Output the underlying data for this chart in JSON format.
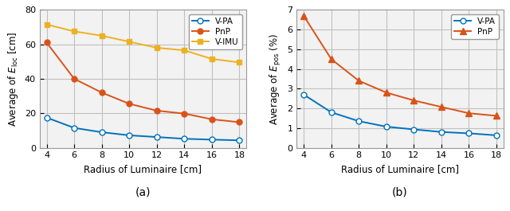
{
  "x": [
    4,
    6,
    8,
    10,
    12,
    14,
    16,
    18
  ],
  "left": {
    "vpa": [
      17.5,
      11.5,
      9.0,
      7.2,
      6.2,
      5.2,
      4.7,
      4.3
    ],
    "pnp": [
      61.0,
      40.0,
      32.0,
      25.5,
      21.5,
      19.8,
      16.5,
      14.8
    ],
    "vimu": [
      71.5,
      67.5,
      65.0,
      61.5,
      58.0,
      56.5,
      51.5,
      49.5
    ],
    "ylabel": "Average of $E_{\\mathrm{loc}}$ [cm]",
    "ylim": [
      0,
      80
    ],
    "yticks": [
      0,
      20,
      40,
      60,
      80
    ],
    "label": "(a)"
  },
  "right": {
    "vpa": [
      2.7,
      1.8,
      1.35,
      1.07,
      0.93,
      0.8,
      0.73,
      0.63
    ],
    "pnp": [
      6.7,
      4.5,
      3.4,
      2.8,
      2.4,
      2.07,
      1.75,
      1.62
    ],
    "ylabel": "Average of $E_{\\mathrm{pos}}$ (%)",
    "ylim": [
      0,
      7
    ],
    "yticks": [
      0,
      1,
      2,
      3,
      4,
      5,
      6,
      7
    ],
    "label": "(b)"
  },
  "xlabel": "Radius of Luminaire [cm]",
  "xticks": [
    4,
    6,
    8,
    10,
    12,
    14,
    16,
    18
  ],
  "xlim": [
    3.5,
    18.5
  ],
  "color_blue": "#0072BD",
  "color_orange": "#D95319",
  "color_yellow": "#EDB120",
  "grid_color": "#C0C0C0",
  "bg_color": "#F2F2F2"
}
